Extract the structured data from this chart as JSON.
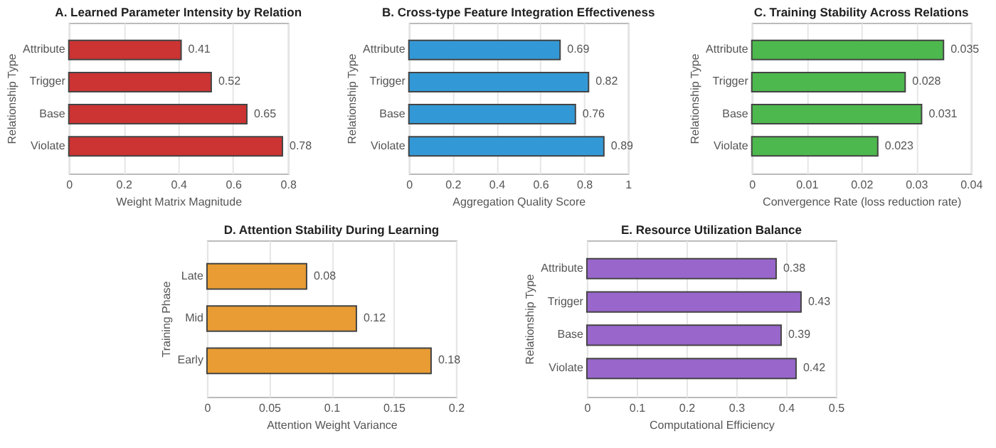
{
  "chart_data": [
    {
      "type": "bar",
      "orientation": "horizontal",
      "title": "A. Learned Parameter Intensity by Relation",
      "xlabel": "Weight Matrix Magnitude",
      "ylabel": "Relationship Type",
      "categories": [
        "Attribute",
        "Trigger",
        "Base",
        "Violate"
      ],
      "values": [
        0.41,
        0.52,
        0.65,
        0.78
      ],
      "color": "#cc3333",
      "xlim": [
        0,
        0.8
      ],
      "xticks": [
        0,
        0.2,
        0.4,
        0.6,
        0.8
      ],
      "grid": "x",
      "data_labels": true
    },
    {
      "type": "bar",
      "orientation": "horizontal",
      "title": "B. Cross-type Feature Integration Effectiveness",
      "xlabel": "Aggregation Quality Score",
      "ylabel": "Relationship Type",
      "categories": [
        "Attribute",
        "Trigger",
        "Base",
        "Violate"
      ],
      "values": [
        0.69,
        0.82,
        0.76,
        0.89
      ],
      "color": "#3399d6",
      "xlim": [
        0,
        1
      ],
      "xticks": [
        0,
        0.2,
        0.4,
        0.6,
        0.8,
        1
      ],
      "grid": "x",
      "data_labels": true
    },
    {
      "type": "bar",
      "orientation": "horizontal",
      "title": "C. Training Stability Across Relations",
      "xlabel": "Convergence Rate (loss reduction rate)",
      "ylabel": "Relationship Type",
      "categories": [
        "Attribute",
        "Trigger",
        "Base",
        "Violate"
      ],
      "values": [
        0.035,
        0.028,
        0.031,
        0.023
      ],
      "color": "#4db84d",
      "xlim": [
        0,
        0.04
      ],
      "xticks": [
        0,
        0.01,
        0.02,
        0.03,
        0.04
      ],
      "grid": "x",
      "data_labels": true
    },
    {
      "type": "bar",
      "orientation": "horizontal",
      "title": "D. Attention Stability During Learning",
      "xlabel": "Attention Weight Variance",
      "ylabel": "Training Phase",
      "categories": [
        "Late",
        "Mid",
        "Early"
      ],
      "values": [
        0.08,
        0.12,
        0.18
      ],
      "color": "#e89c33",
      "xlim": [
        0,
        0.2
      ],
      "xticks": [
        0,
        0.05,
        0.1,
        0.15,
        0.2
      ],
      "grid": "x",
      "data_labels": true
    },
    {
      "type": "bar",
      "orientation": "horizontal",
      "title": "E. Resource Utilization Balance",
      "xlabel": "Computational Efficiency",
      "ylabel": "Relationship Type",
      "categories": [
        "Attribute",
        "Trigger",
        "Base",
        "Violate"
      ],
      "values": [
        0.38,
        0.43,
        0.39,
        0.42
      ],
      "color": "#9966cc",
      "xlim": [
        0,
        0.5
      ],
      "xticks": [
        0,
        0.1,
        0.2,
        0.3,
        0.4,
        0.5
      ],
      "grid": "x",
      "data_labels": true
    }
  ]
}
